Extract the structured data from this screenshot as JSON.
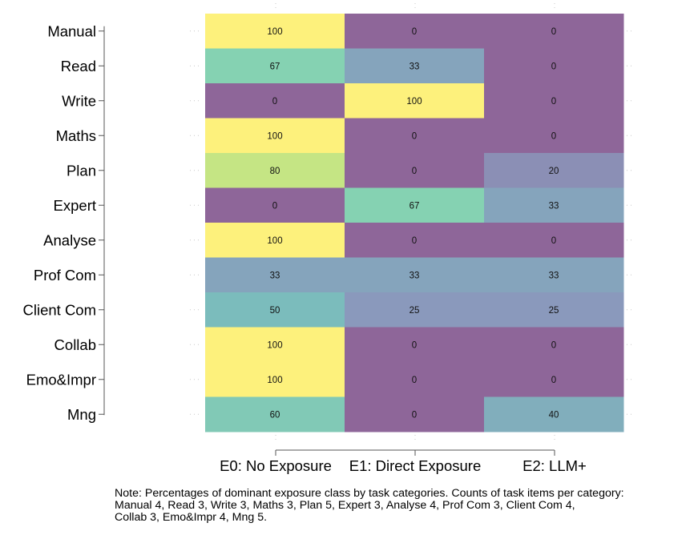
{
  "chart_data": {
    "type": "heatmap",
    "rows": [
      "Manual",
      "Read",
      "Write",
      "Maths",
      "Plan",
      "Expert",
      "Analyse",
      "Prof Com",
      "Client Com",
      "Collab",
      "Emo&Impr",
      "Mng"
    ],
    "columns": [
      "E0: No Exposure",
      "E1: Direct Exposure",
      "E2: LLM+"
    ],
    "values": [
      [
        100,
        0,
        0
      ],
      [
        67,
        33,
        0
      ],
      [
        0,
        100,
        0
      ],
      [
        100,
        0,
        0
      ],
      [
        80,
        0,
        20
      ],
      [
        0,
        67,
        33
      ],
      [
        100,
        0,
        0
      ],
      [
        33,
        33,
        33
      ],
      [
        50,
        25,
        25
      ],
      [
        100,
        0,
        0
      ],
      [
        100,
        0,
        0
      ],
      [
        60,
        0,
        40
      ]
    ],
    "value_range": [
      0,
      100
    ],
    "colormap": "viridis (pastel)",
    "grid": false,
    "legend": "none"
  },
  "note": {
    "lines": [
      "Note: Percentages of dominant exposure class by task categories. Counts of task items per category:",
      "Manual 4, Read 3, Write 3, Maths 3, Plan 5, Expert 3, Analyse 4, Prof Com 3, Client Com 4,",
      "Collab 3, Emo&Impr 4, Mng 5."
    ]
  },
  "colors": {
    "low": "#8e6699",
    "mid": "#85d2b2",
    "high": "#fdf17c",
    "axis": "#555555"
  }
}
